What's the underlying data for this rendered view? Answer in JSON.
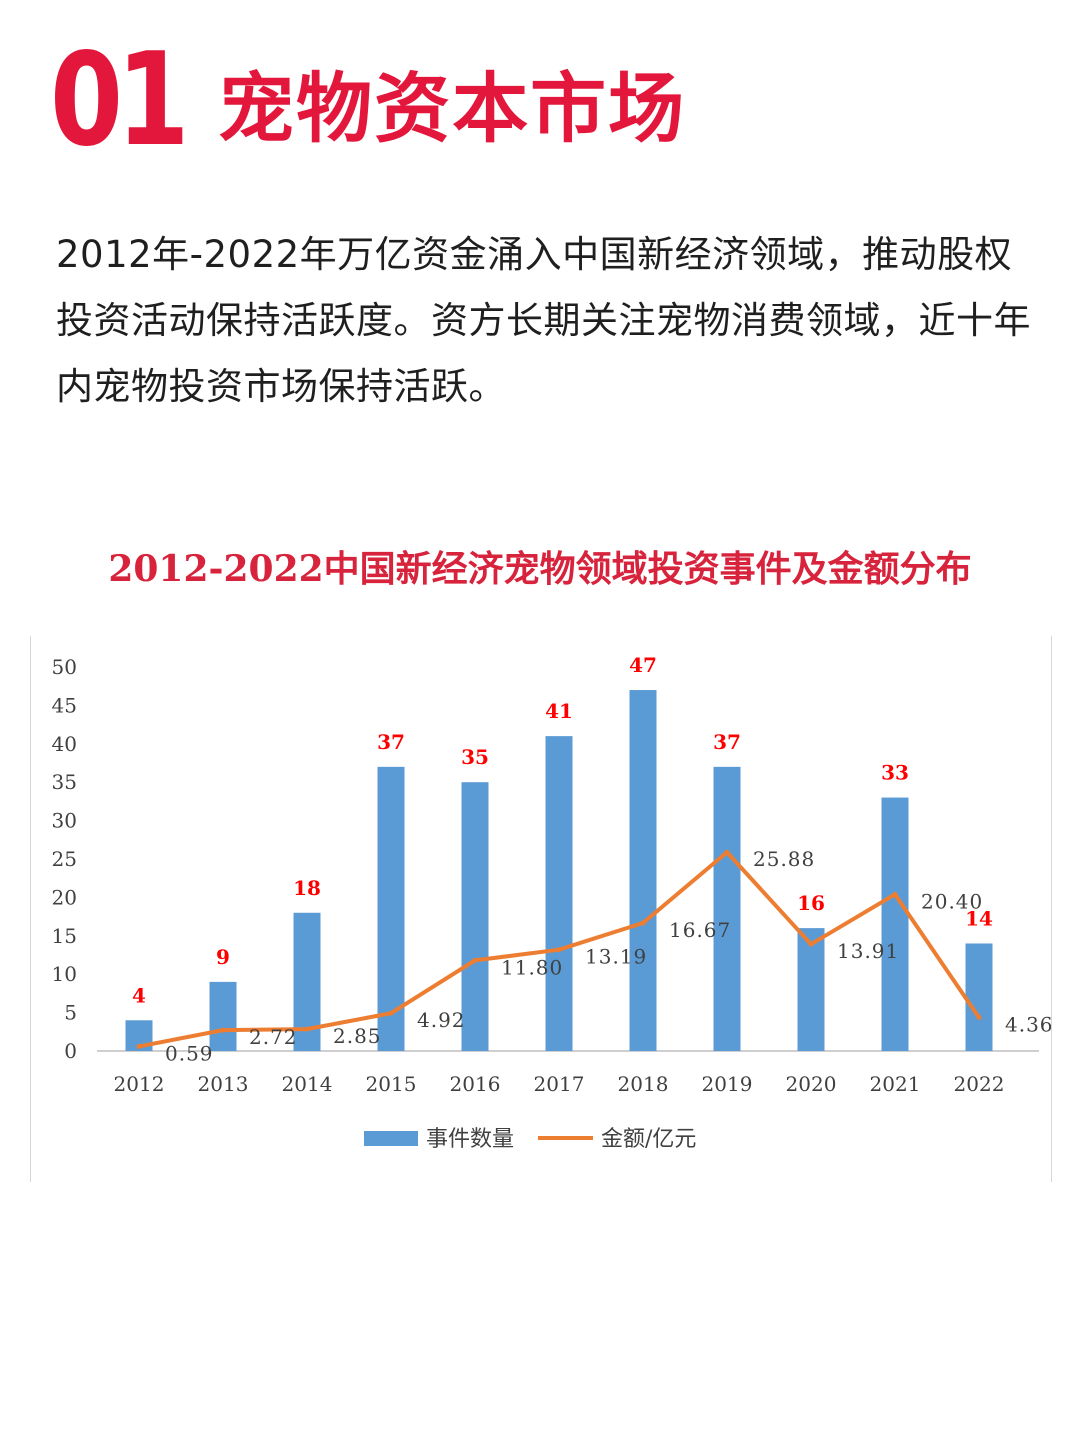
{
  "header": {
    "section_number": "01",
    "section_title": "宠物资本市场"
  },
  "intro_text": "2012年-2022年万亿资金涌入中国新经济领域，推动股权投资活动保持活跃度。资方长期关注宠物消费领域，近十年内宠物投资市场保持活跃。",
  "colors": {
    "accent": "#e3173b",
    "bar": "#5b9bd5",
    "line": "#ed7d31",
    "bar_label": "#ff0000"
  },
  "chart_data": {
    "type": "bar",
    "title": "2012-2022中国新经济宠物领域投资事件及金额分布",
    "categories": [
      "2012",
      "2013",
      "2014",
      "2015",
      "2016",
      "2017",
      "2018",
      "2019",
      "2020",
      "2021",
      "2022"
    ],
    "ylim": [
      0,
      50
    ],
    "yticks": [
      "0",
      "5",
      "10",
      "15",
      "20",
      "25",
      "30",
      "35",
      "40",
      "45",
      "50"
    ],
    "grid": false,
    "legend_position": "bottom",
    "series": [
      {
        "name": "事件数量",
        "type": "bar",
        "values": [
          4,
          9,
          18,
          37,
          35,
          41,
          47,
          37,
          16,
          33,
          14
        ],
        "labels": [
          "4",
          "9",
          "18",
          "37",
          "35",
          "41",
          "47",
          "37",
          "16",
          "33",
          "14"
        ]
      },
      {
        "name": "金额/亿元",
        "type": "line",
        "values": [
          0.59,
          2.72,
          2.85,
          4.92,
          11.8,
          13.19,
          16.67,
          25.88,
          13.91,
          20.4,
          4.36
        ],
        "labels": [
          "0.59",
          "2.72",
          "2.85",
          "4.92",
          "11.80",
          "13.19",
          "16.67",
          "25.88",
          "13.91",
          "20.40",
          "4.36"
        ]
      }
    ]
  }
}
